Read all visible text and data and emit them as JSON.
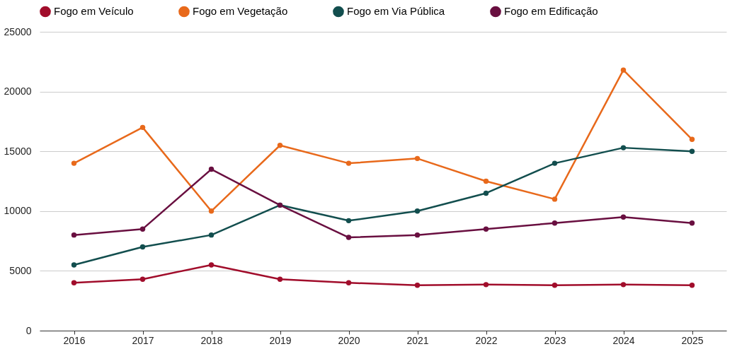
{
  "chart_data": {
    "type": "line",
    "categories": [
      "2016",
      "2017",
      "2018",
      "2019",
      "2020",
      "2021",
      "2022",
      "2023",
      "2024",
      "2025"
    ],
    "series": [
      {
        "name": "Fogo em Veículo",
        "color": "#a10d2b",
        "values": [
          4000,
          4300,
          5500,
          4300,
          4000,
          3800,
          3850,
          3800,
          3850,
          3800
        ]
      },
      {
        "name": "Fogo em Vegetação",
        "color": "#e8691b",
        "values": [
          14000,
          17000,
          10000,
          15500,
          14000,
          14400,
          12500,
          11000,
          21800,
          16000
        ]
      },
      {
        "name": "Fogo em Via Pública",
        "color": "#124e4e",
        "values": [
          5500,
          7000,
          8000,
          10500,
          9200,
          10000,
          11500,
          14000,
          15300,
          15000
        ]
      },
      {
        "name": "Fogo em Edificação",
        "color": "#690f40",
        "values": [
          8000,
          8500,
          13500,
          10500,
          7800,
          8000,
          8500,
          9000,
          9500,
          9000
        ]
      }
    ],
    "ylim": [
      0,
      25000
    ],
    "yticks": [
      0,
      5000,
      10000,
      15000,
      20000,
      25000
    ],
    "grid": "y",
    "legend": "top",
    "marker": "circle",
    "line_style": "solid"
  }
}
